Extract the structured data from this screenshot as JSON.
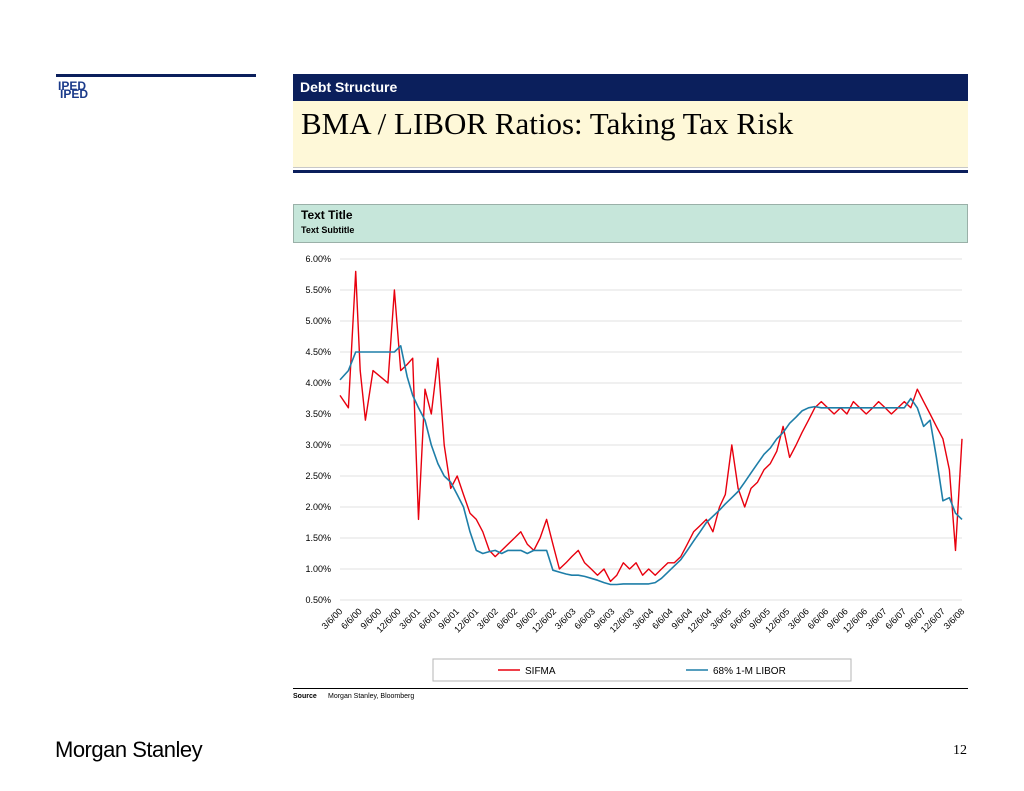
{
  "brand": {
    "label_back": "IPED",
    "label_front": "IPED"
  },
  "section": {
    "label": "Debt Structure"
  },
  "slide": {
    "title": "BMA / LIBOR Ratios: Taking Tax Risk",
    "page_number": "12"
  },
  "footer": {
    "source_label": "Source",
    "source_text": "Morgan Stanley, Bloomberg",
    "logo": "Morgan Stanley"
  },
  "colors": {
    "navy": "#0b1f5c",
    "title_band": "#fef8d8",
    "chart_header": "#c6e6da",
    "sifma": "#e8000e",
    "libor": "#1e7ea8"
  },
  "chart_data": {
    "type": "line",
    "title": "Text Title",
    "subtitle": "Text Subtitle",
    "ylim": [
      0.5,
      6.0
    ],
    "yticks": [
      "6.00%",
      "5.50%",
      "5.00%",
      "4.50%",
      "4.00%",
      "3.50%",
      "3.00%",
      "2.50%",
      "2.00%",
      "1.50%",
      "1.00%",
      "0.50%"
    ],
    "ytick_values": [
      6.0,
      5.5,
      5.0,
      4.5,
      4.0,
      3.5,
      3.0,
      2.5,
      2.0,
      1.5,
      1.0,
      0.5
    ],
    "grid": true,
    "legend_position": "bottom",
    "x_tick_labels": [
      "3/6/00",
      "6/6/00",
      "9/6/00",
      "12/6/00",
      "3/6/01",
      "6/6/01",
      "9/6/01",
      "12/6/01",
      "3/6/02",
      "6/6/02",
      "9/6/02",
      "12/6/02",
      "3/6/03",
      "6/6/03",
      "9/6/03",
      "12/6/03",
      "3/6/04",
      "6/6/04",
      "9/6/04",
      "12/6/04",
      "3/6/05",
      "6/6/05",
      "9/6/05",
      "12/6/05",
      "3/6/06",
      "6/6/06",
      "9/6/06",
      "12/6/06",
      "3/6/07",
      "6/6/07",
      "9/6/07",
      "12/6/07",
      "3/6/08"
    ],
    "x": [
      "2000-03-06",
      "2000-04-15",
      "2000-05-20",
      "2000-06-10",
      "2000-07-05",
      "2000-08-10",
      "2000-09-15",
      "2000-10-20",
      "2000-11-20",
      "2000-12-20",
      "2001-01-20",
      "2001-02-15",
      "2001-03-15",
      "2001-04-15",
      "2001-05-15",
      "2001-06-15",
      "2001-07-15",
      "2001-08-15",
      "2001-09-15",
      "2001-10-15",
      "2001-11-15",
      "2001-12-15",
      "2002-01-15",
      "2002-02-15",
      "2002-03-15",
      "2002-04-15",
      "2002-05-15",
      "2002-06-15",
      "2002-07-15",
      "2002-08-15",
      "2002-09-15",
      "2002-10-15",
      "2002-11-15",
      "2002-12-15",
      "2003-01-15",
      "2003-02-15",
      "2003-03-15",
      "2003-04-15",
      "2003-05-15",
      "2003-06-15",
      "2003-07-15",
      "2003-08-15",
      "2003-09-15",
      "2003-10-15",
      "2003-11-15",
      "2003-12-15",
      "2004-01-15",
      "2004-02-15",
      "2004-03-15",
      "2004-04-15",
      "2004-05-15",
      "2004-06-15",
      "2004-07-15",
      "2004-08-15",
      "2004-09-15",
      "2004-10-15",
      "2004-11-15",
      "2004-12-15",
      "2005-01-15",
      "2005-02-15",
      "2005-03-15",
      "2005-04-15",
      "2005-05-15",
      "2005-06-15",
      "2005-07-15",
      "2005-08-15",
      "2005-09-15",
      "2005-10-15",
      "2005-11-15",
      "2005-12-15",
      "2006-01-15",
      "2006-02-15",
      "2006-03-15",
      "2006-04-15",
      "2006-05-15",
      "2006-06-15",
      "2006-07-15",
      "2006-08-15",
      "2006-09-15",
      "2006-10-15",
      "2006-11-15",
      "2006-12-15",
      "2007-01-15",
      "2007-02-15",
      "2007-03-15",
      "2007-04-15",
      "2007-05-15",
      "2007-06-15",
      "2007-07-15",
      "2007-08-15",
      "2007-09-15",
      "2007-10-15",
      "2007-11-15",
      "2007-12-15",
      "2008-01-15",
      "2008-02-15",
      "2008-03-15",
      "2008-04-15"
    ],
    "series": [
      {
        "name": "SIFMA",
        "values": [
          3.8,
          3.6,
          5.8,
          4.2,
          3.4,
          4.2,
          4.1,
          4.0,
          5.5,
          4.2,
          4.3,
          4.4,
          1.8,
          3.9,
          3.5,
          4.4,
          3.0,
          2.3,
          2.5,
          2.2,
          1.9,
          1.8,
          1.6,
          1.3,
          1.2,
          1.3,
          1.4,
          1.5,
          1.6,
          1.4,
          1.3,
          1.5,
          1.8,
          1.4,
          1.0,
          1.1,
          1.2,
          1.3,
          1.1,
          1.0,
          0.9,
          1.0,
          0.8,
          0.9,
          1.1,
          1.0,
          1.1,
          0.9,
          1.0,
          0.9,
          1.0,
          1.1,
          1.1,
          1.2,
          1.4,
          1.6,
          1.7,
          1.8,
          1.6,
          2.0,
          2.2,
          3.0,
          2.3,
          2.0,
          2.3,
          2.4,
          2.6,
          2.7,
          2.9,
          3.3,
          2.8,
          3.0,
          3.2,
          3.4,
          3.6,
          3.7,
          3.6,
          3.5,
          3.6,
          3.5,
          3.7,
          3.6,
          3.5,
          3.6,
          3.7,
          3.6,
          3.5,
          3.6,
          3.7,
          3.6,
          3.9,
          3.7,
          3.5,
          3.3,
          3.1,
          2.6,
          1.3,
          3.1
        ]
      },
      {
        "name": "68% 1-M LIBOR",
        "values": [
          4.05,
          4.2,
          4.5,
          4.5,
          4.5,
          4.5,
          4.5,
          4.5,
          4.5,
          4.6,
          4.1,
          3.8,
          3.6,
          3.4,
          3.0,
          2.7,
          2.5,
          2.4,
          2.2,
          2.0,
          1.6,
          1.3,
          1.25,
          1.28,
          1.3,
          1.25,
          1.3,
          1.3,
          1.3,
          1.25,
          1.3,
          1.3,
          1.3,
          0.98,
          0.95,
          0.92,
          0.9,
          0.9,
          0.88,
          0.85,
          0.82,
          0.78,
          0.75,
          0.75,
          0.76,
          0.76,
          0.76,
          0.76,
          0.76,
          0.78,
          0.85,
          0.95,
          1.05,
          1.15,
          1.3,
          1.45,
          1.6,
          1.75,
          1.85,
          1.95,
          2.05,
          2.15,
          2.25,
          2.4,
          2.55,
          2.7,
          2.85,
          2.95,
          3.1,
          3.2,
          3.35,
          3.45,
          3.55,
          3.6,
          3.62,
          3.6,
          3.6,
          3.6,
          3.6,
          3.6,
          3.6,
          3.6,
          3.6,
          3.6,
          3.6,
          3.6,
          3.6,
          3.6,
          3.6,
          3.75,
          3.6,
          3.3,
          3.4,
          2.8,
          2.1,
          2.15,
          1.9,
          1.8
        ]
      }
    ]
  }
}
